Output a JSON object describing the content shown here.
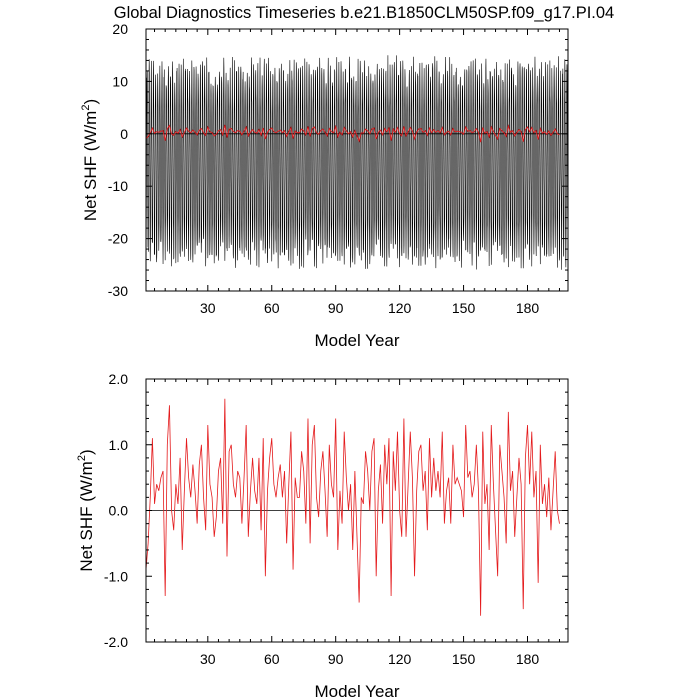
{
  "page": {
    "title": "Global Diagnostics Timeseries b.e21.B1850CLM50SP.f09_g17.PI.04"
  },
  "chart_data": [
    {
      "type": "line",
      "title": "Global Diagnostics Timeseries b.e21.B1850CLM50SP.f09_g17.PI.04",
      "xlabel": "Model Year",
      "ylabel_main": "Net SHF (W/m",
      "ylabel_sup": "2",
      "ylabel_close": ")",
      "xlim": [
        1,
        199
      ],
      "ylim": [
        -30,
        20
      ],
      "xticks": [
        30,
        60,
        90,
        120,
        150,
        180
      ],
      "xtick_labels": [
        "30",
        "60",
        "90",
        "120",
        "150",
        "180"
      ],
      "yticks": [
        20,
        10,
        0,
        -10,
        -20,
        -30
      ],
      "ytick_labels": [
        "20",
        "10",
        "0",
        "-10",
        "-20",
        "-30"
      ],
      "series": [
        {
          "kind": "monthly",
          "color": "#000000",
          "months_per_year": 12,
          "seasonal_min_approx": -23,
          "seasonal_max_approx": 12,
          "overall_min_approx": -27,
          "overall_max_approx": 18.5
        },
        {
          "kind": "annual",
          "color": "#e41a1c",
          "values_ref": "annual_means"
        }
      ],
      "zero_line": true,
      "grid": false
    },
    {
      "type": "line",
      "xlabel": "Model Year",
      "ylabel_main": "Net SHF (W/m",
      "ylabel_sup": "2",
      "ylabel_close": ")",
      "xlim": [
        1,
        199
      ],
      "ylim": [
        -2.0,
        2.0
      ],
      "xticks": [
        30,
        60,
        90,
        120,
        150,
        180
      ],
      "xtick_labels": [
        "30",
        "60",
        "90",
        "120",
        "150",
        "180"
      ],
      "yticks": [
        2.0,
        1.0,
        0.0,
        -1.0,
        -2.0
      ],
      "ytick_labels": [
        "2.0",
        "1.0",
        "0.0",
        "-1.0",
        "-2.0"
      ],
      "series": [
        {
          "kind": "annual",
          "color": "#e41a1c",
          "values_ref": "annual_means"
        }
      ],
      "zero_line": true,
      "grid": false
    }
  ],
  "annual_means": [
    -0.9,
    -0.5,
    0.2,
    1.1,
    0.1,
    0.4,
    0.3,
    0.5,
    0.6,
    -1.3,
    1.0,
    1.6,
    0.0,
    -0.3,
    0.4,
    0.1,
    0.8,
    -0.6,
    0.3,
    1.1,
    0.5,
    0.2,
    0.7,
    0.3,
    -0.2,
    0.7,
    1.0,
    0.2,
    -0.3,
    1.3,
    0.4,
    0.2,
    -0.4,
    -0.1,
    0.6,
    0.8,
    -0.2,
    1.7,
    -0.7,
    0.9,
    1.0,
    0.4,
    0.2,
    0.6,
    0.5,
    -0.2,
    0.5,
    1.3,
    -0.4,
    0.3,
    0.8,
    0.3,
    0.1,
    0.8,
    -0.3,
    1.1,
    -1.0,
    0.3,
    0.8,
    1.1,
    0.4,
    0.2,
    0.5,
    0.7,
    0.2,
    0.6,
    -0.5,
    0.4,
    1.2,
    -0.9,
    0.5,
    0.2,
    0.2,
    0.9,
    0.6,
    -0.2,
    1.4,
    -0.5,
    1.0,
    1.3,
    0.2,
    -0.1,
    0.6,
    0.9,
    0.3,
    -0.4,
    1.0,
    0.4,
    0.2,
    1.4,
    -0.6,
    0.3,
    -0.2,
    1.2,
    0.5,
    0.0,
    0.4,
    -0.6,
    0.6,
    -0.4,
    -1.4,
    0.2,
    0.1,
    0.9,
    0.6,
    0.0,
    0.9,
    1.1,
    -1.0,
    0.3,
    0.7,
    -0.2,
    1.0,
    0.4,
    1.1,
    -1.3,
    0.9,
    0.3,
    1.2,
    0.0,
    -0.4,
    1.4,
    -0.4,
    0.4,
    1.2,
    0.5,
    -1.0,
    0.3,
    0.9,
    1.0,
    0.3,
    0.6,
    -0.3,
    1.1,
    0.2,
    0.8,
    0.3,
    0.6,
    0.2,
    1.2,
    -0.2,
    0.3,
    0.5,
    -0.2,
    1.0,
    0.4,
    0.5,
    0.4,
    0.3,
    -0.1,
    1.3,
    0.5,
    0.6,
    0.2,
    0.4,
    1.0,
    0.3,
    -1.6,
    1.2,
    0.1,
    0.4,
    -0.6,
    1.3,
    0.4,
    -0.3,
    -1.0,
    1.0,
    0.6,
    0.2,
    -0.5,
    1.5,
    0.3,
    0.6,
    -0.4,
    0.2,
    0.8,
    0.4,
    -1.5,
    0.8,
    1.3,
    0.4,
    1.2,
    0.2,
    0.6,
    -1.1,
    1.0,
    0.1,
    0.4,
    -0.1,
    0.5,
    -0.3,
    0.3,
    0.9,
    0.0,
    -0.2
  ]
}
